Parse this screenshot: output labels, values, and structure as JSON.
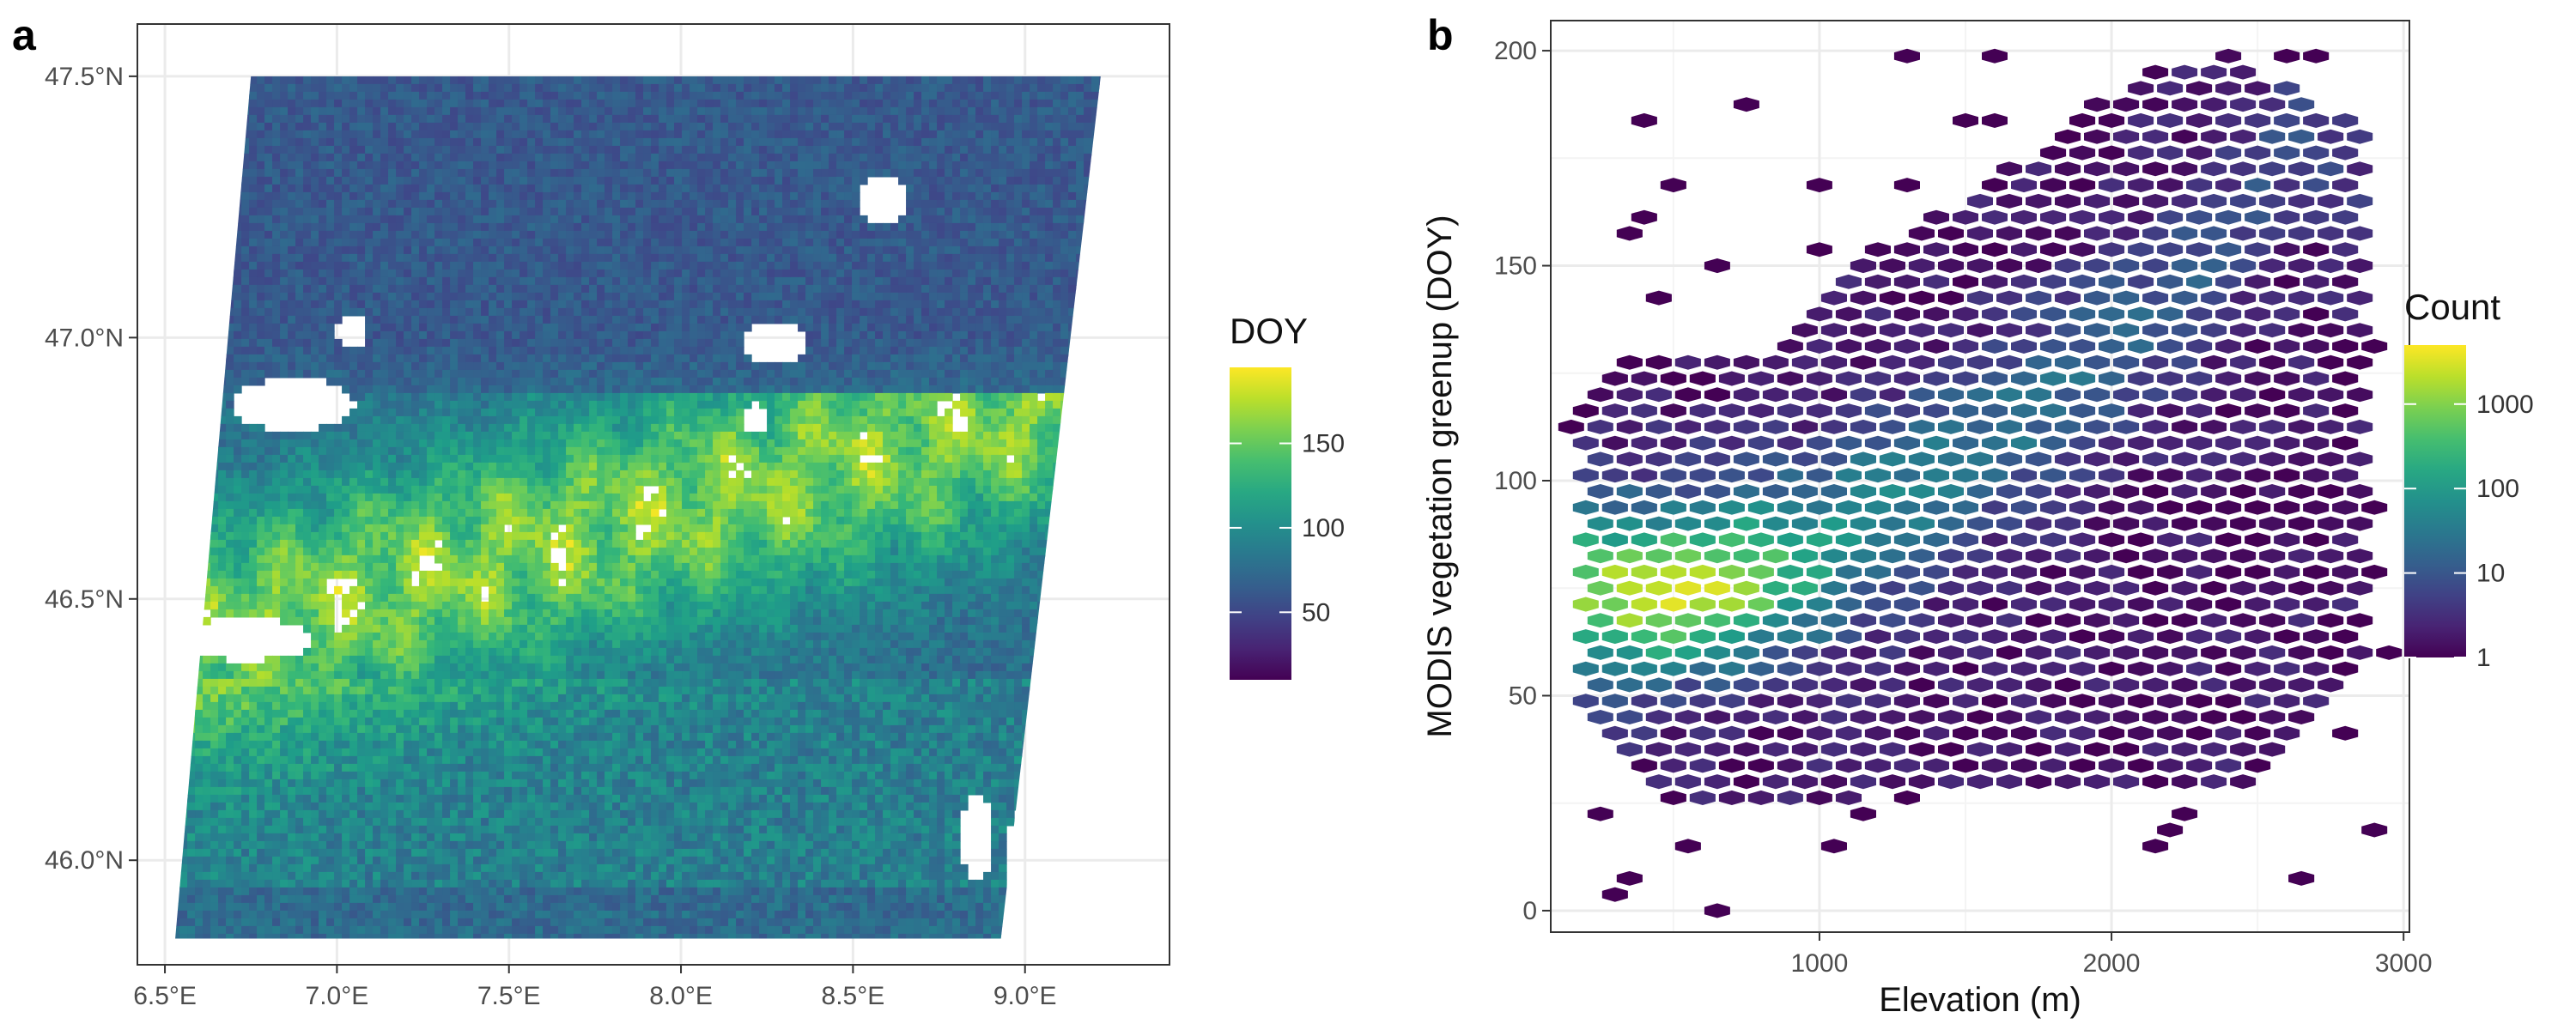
{
  "panels": {
    "a": {
      "letter": "a"
    },
    "b": {
      "letter": "b"
    }
  },
  "colors": {
    "viridis": [
      "#440154",
      "#3b528b",
      "#21908c",
      "#5dc863",
      "#fde725"
    ],
    "grid": "#ebebeb",
    "panel_border": "#333333",
    "background": "#ffffff"
  },
  "chart_data": [
    {
      "type": "heatmap",
      "title": "",
      "xlabel": "",
      "ylabel": "",
      "xlim": [
        6.42,
        9.42
      ],
      "ylim": [
        45.8,
        47.6
      ],
      "x_ticks": [
        6.5,
        7.0,
        7.5,
        8.0,
        8.5,
        9.0
      ],
      "x_tick_labels": [
        "6.5°E",
        "7.0°E",
        "7.5°E",
        "8.0°E",
        "8.5°E",
        "9.0°E"
      ],
      "y_ticks": [
        46.0,
        46.5,
        47.0,
        47.5
      ],
      "y_tick_labels": [
        "46.0°N",
        "46.5°N",
        "47.0°N",
        "47.5°N"
      ],
      "grid": true,
      "legend": {
        "title": "DOY",
        "placement": "right",
        "range": [
          10,
          195
        ],
        "ticks": [
          50,
          100,
          150
        ],
        "tick_labels": [
          "50",
          "100",
          "150"
        ]
      },
      "raster_footprint": {
        "corners_lonlat": [
          [
            6.75,
            47.5
          ],
          [
            9.22,
            47.5
          ],
          [
            8.93,
            45.85
          ],
          [
            6.53,
            45.85
          ]
        ]
      }
    },
    {
      "type": "heatmap",
      "subtype": "hexbin",
      "title": "",
      "xlabel": "Elevation (m)",
      "ylabel": "MODIS vegetation greenup (DOY)",
      "xlim": [
        80,
        3020
      ],
      "ylim": [
        -5,
        207
      ],
      "x_ticks": [
        1000,
        2000,
        3000
      ],
      "x_tick_labels": [
        "1000",
        "2000",
        "3000"
      ],
      "y_ticks": [
        0,
        50,
        100,
        150,
        200
      ],
      "y_tick_labels": [
        "0",
        "50",
        "100",
        "150",
        "200"
      ],
      "grid": true,
      "legend": {
        "title": "Count",
        "placement": "right",
        "scale": "log",
        "range": [
          1,
          5000
        ],
        "ticks": [
          1,
          10,
          100,
          1000
        ],
        "tick_labels": [
          "1",
          "10",
          "100",
          "1000"
        ]
      },
      "hexbin": {
        "bin_width_m": 100,
        "bin_height_doy": 5,
        "peak": {
          "elevation": 550,
          "doy": 73,
          "count": 4500
        },
        "ridge": [
          [
            450,
            75
          ],
          [
            1000,
            85
          ],
          [
            1500,
            105
          ],
          [
            2000,
            130
          ],
          [
            2400,
            155
          ],
          [
            2600,
            180
          ]
        ],
        "coverage_envelope": [
          [
            200,
            48
          ],
          [
            500,
            25
          ],
          [
            1000,
            25
          ],
          [
            1500,
            30
          ],
          [
            2000,
            30
          ],
          [
            2500,
            30
          ],
          [
            2900,
            60
          ],
          [
            2900,
            180
          ],
          [
            2400,
            200
          ],
          [
            2100,
            195
          ],
          [
            1600,
            170
          ],
          [
            1100,
            150
          ],
          [
            800,
            130
          ],
          [
            300,
            130
          ],
          [
            150,
            115
          ]
        ]
      }
    }
  ]
}
